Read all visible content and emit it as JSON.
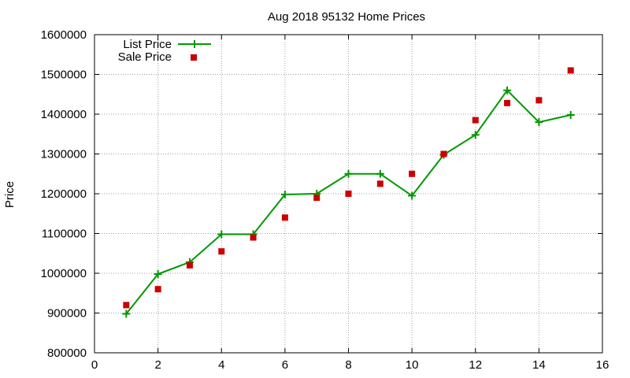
{
  "chart_data": {
    "type": "line",
    "title": "Aug 2018 95132 Home Prices",
    "xlabel": "",
    "ylabel": "Price",
    "xlim": [
      0,
      16
    ],
    "ylim": [
      800000,
      1600000
    ],
    "x_ticks": [
      "0",
      "2",
      "4",
      "6",
      "8",
      "10",
      "12",
      "14",
      "16"
    ],
    "y_ticks": [
      "800000",
      "900000",
      "1000000",
      "1100000",
      "1200000",
      "1300000",
      "1400000",
      "1500000",
      "1600000"
    ],
    "grid": true,
    "legend_position": "top-left",
    "series": [
      {
        "name": "List Price",
        "style": "line+plus",
        "color": "#009900",
        "x": [
          1,
          2,
          3,
          4,
          5,
          6,
          7,
          8,
          9,
          10,
          11,
          12,
          13,
          14,
          15
        ],
        "y": [
          898000,
          998000,
          1028000,
          1098000,
          1098000,
          1198000,
          1200000,
          1250000,
          1250000,
          1195000,
          1298000,
          1348000,
          1460000,
          1380000,
          1398000
        ]
      },
      {
        "name": "Sale Price",
        "style": "square",
        "color": "#cc0000",
        "x": [
          1,
          2,
          3,
          4,
          5,
          6,
          7,
          8,
          9,
          10,
          11,
          12,
          13,
          14,
          15
        ],
        "y": [
          920000,
          960000,
          1020000,
          1055000,
          1090000,
          1140000,
          1190000,
          1200000,
          1225000,
          1250000,
          1300000,
          1385000,
          1428000,
          1435000,
          1510000
        ]
      }
    ]
  }
}
